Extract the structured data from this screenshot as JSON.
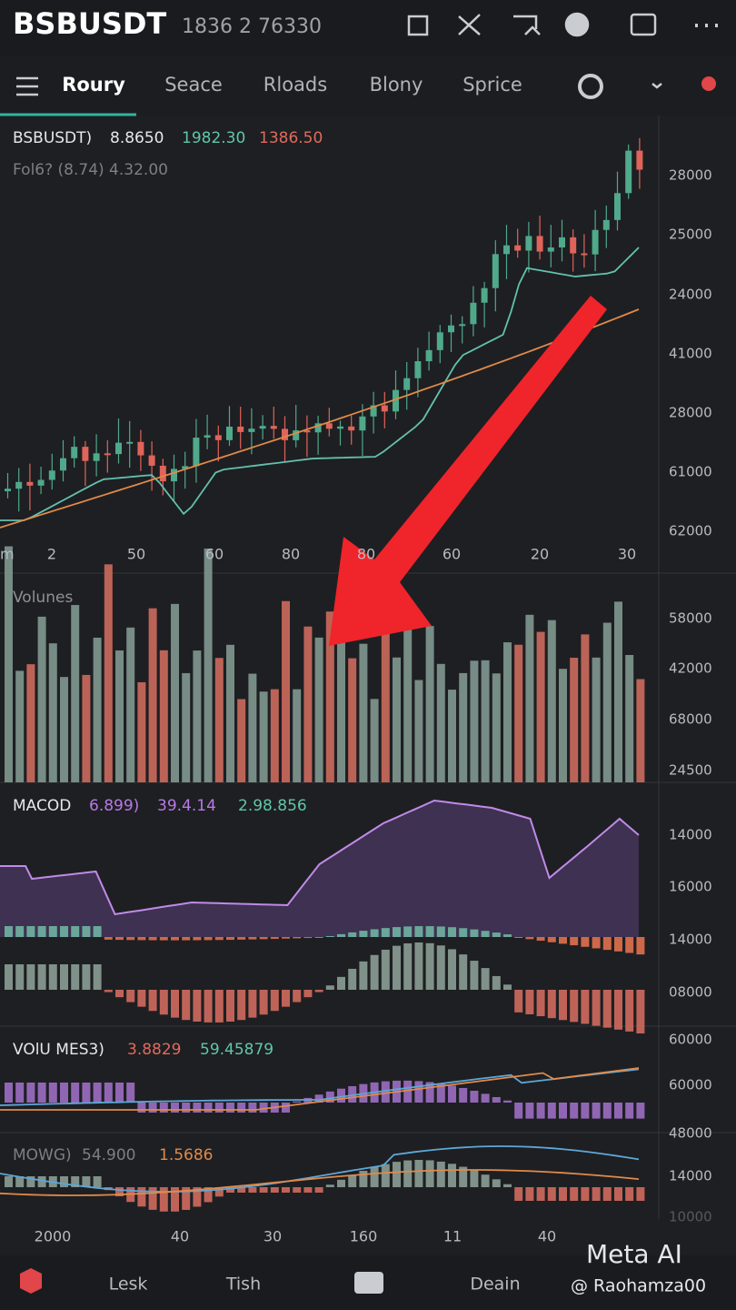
{
  "header": {
    "symbol": "BSBUSDT",
    "price": "1836 2 76330"
  },
  "tabs": [
    "Roury",
    "Seace",
    "Rloads",
    "Blony",
    "Sprice"
  ],
  "price_panel": {
    "symbol": "BSBUSDT)",
    "values": [
      "8.8650",
      "1982.30",
      "1386.50"
    ],
    "sub": "Fol6? (8.74) 4.32.00",
    "axis": [
      "28000",
      "25000",
      "24000",
      "41000",
      "28000",
      "61000",
      "62000"
    ],
    "x_labels": [
      "m",
      "2",
      "50",
      "60",
      "80",
      "80",
      "60",
      "20",
      "30"
    ]
  },
  "volume_panel": {
    "title": "Volunes",
    "axis": [
      "58000",
      "42000",
      "68000",
      "24500"
    ]
  },
  "macd_panel": {
    "title": "MACOD",
    "values": [
      "6.899)",
      "39.4.14",
      "2.98.856"
    ],
    "axis": [
      "14000",
      "16000",
      "14000",
      "08000"
    ]
  },
  "volmes_panel": {
    "title": "VOlU MES3)",
    "values": [
      "3.8829",
      "59.45879"
    ],
    "axis": [
      "60000",
      "60000",
      "48000"
    ]
  },
  "mow_panel": {
    "title": "MOWG)",
    "values": [
      "54.900",
      "1.5686"
    ],
    "axis": [
      "14000",
      "10000"
    ]
  },
  "x_labels": [
    "2000",
    "40",
    "30",
    "160",
    "11",
    "40"
  ],
  "nav": [
    "Lesk",
    "Tish",
    "Deain"
  ],
  "watermark": {
    "brand": "Meta AI",
    "user": "@ Raohamza00"
  }
}
